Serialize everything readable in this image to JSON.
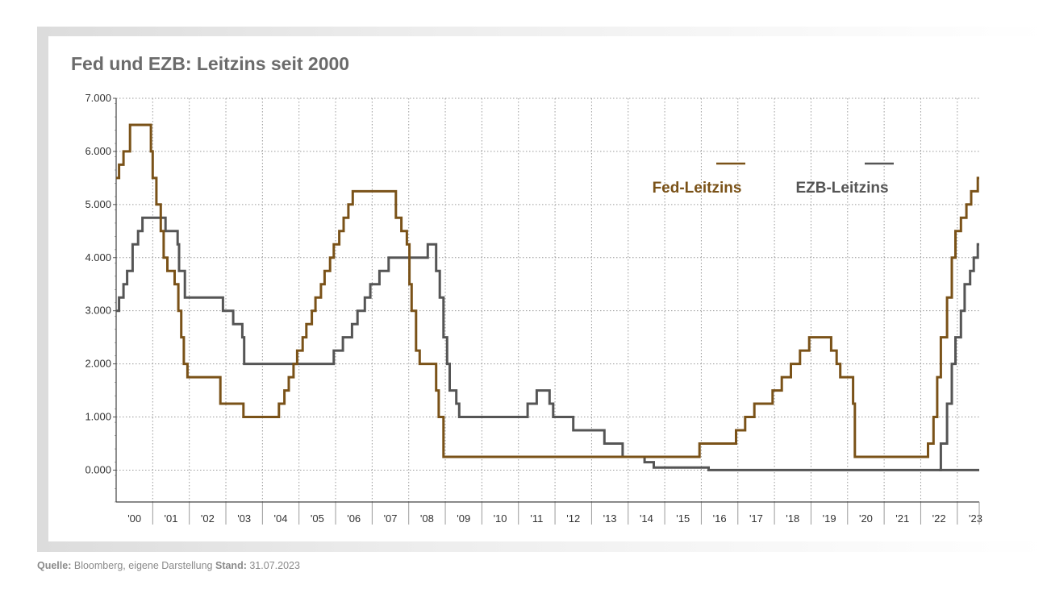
{
  "source": {
    "label": "Quelle:",
    "text": "Bloomberg, eigene Darstellung",
    "stand_label": "Stand:",
    "stand_value": "31.07.2023"
  },
  "chart_data": {
    "type": "line",
    "title": "Fed und EZB: Leitzins seit 2000",
    "xlabel": "",
    "ylabel": "",
    "xlim": [
      2000.0,
      2023.6
    ],
    "ylim": [
      -0.6,
      7.0
    ],
    "y_ticks": [
      0,
      1,
      2,
      3,
      4,
      5,
      6,
      7
    ],
    "y_tick_labels": [
      "0.000",
      "1.000",
      "2.000",
      "3.000",
      "4.000",
      "5.000",
      "6.000",
      "7.000"
    ],
    "x_tick_labels": [
      "'00",
      "'01",
      "'02",
      "'03",
      "'04",
      "'05",
      "'06",
      "'07",
      "'08",
      "'09",
      "'10",
      "'11",
      "'12",
      "'13",
      "'14",
      "'15",
      "'16",
      "'17",
      "'18",
      "'19",
      "'20",
      "'21",
      "'22",
      "'23"
    ],
    "grid": true,
    "legend_position": "top-right",
    "series": [
      {
        "name": "Fed-Leitzins",
        "color": "#7a5218",
        "step": true,
        "points": [
          [
            2000.0,
            5.5
          ],
          [
            2000.08,
            5.75
          ],
          [
            2000.2,
            6.0
          ],
          [
            2000.38,
            6.5
          ],
          [
            2000.95,
            6.0
          ],
          [
            2001.0,
            5.5
          ],
          [
            2001.1,
            5.0
          ],
          [
            2001.22,
            4.5
          ],
          [
            2001.3,
            4.0
          ],
          [
            2001.4,
            3.75
          ],
          [
            2001.6,
            3.5
          ],
          [
            2001.7,
            3.0
          ],
          [
            2001.78,
            2.5
          ],
          [
            2001.85,
            2.0
          ],
          [
            2001.95,
            1.75
          ],
          [
            2002.85,
            1.25
          ],
          [
            2003.48,
            1.0
          ],
          [
            2004.45,
            1.25
          ],
          [
            2004.6,
            1.5
          ],
          [
            2004.72,
            1.75
          ],
          [
            2004.85,
            2.0
          ],
          [
            2004.95,
            2.25
          ],
          [
            2005.1,
            2.5
          ],
          [
            2005.2,
            2.75
          ],
          [
            2005.35,
            3.0
          ],
          [
            2005.45,
            3.25
          ],
          [
            2005.6,
            3.5
          ],
          [
            2005.7,
            3.75
          ],
          [
            2005.85,
            4.0
          ],
          [
            2005.95,
            4.25
          ],
          [
            2006.1,
            4.5
          ],
          [
            2006.22,
            4.75
          ],
          [
            2006.35,
            5.0
          ],
          [
            2006.47,
            5.25
          ],
          [
            2007.65,
            4.75
          ],
          [
            2007.8,
            4.5
          ],
          [
            2007.95,
            4.25
          ],
          [
            2008.02,
            3.5
          ],
          [
            2008.08,
            3.0
          ],
          [
            2008.2,
            2.25
          ],
          [
            2008.3,
            2.0
          ],
          [
            2008.75,
            1.5
          ],
          [
            2008.82,
            1.0
          ],
          [
            2008.95,
            0.25
          ],
          [
            2015.95,
            0.5
          ],
          [
            2016.95,
            0.75
          ],
          [
            2017.2,
            1.0
          ],
          [
            2017.45,
            1.25
          ],
          [
            2017.95,
            1.5
          ],
          [
            2018.2,
            1.75
          ],
          [
            2018.45,
            2.0
          ],
          [
            2018.7,
            2.25
          ],
          [
            2018.95,
            2.5
          ],
          [
            2019.55,
            2.25
          ],
          [
            2019.7,
            2.0
          ],
          [
            2019.8,
            1.75
          ],
          [
            2020.15,
            1.25
          ],
          [
            2020.2,
            0.25
          ],
          [
            2022.2,
            0.5
          ],
          [
            2022.35,
            1.0
          ],
          [
            2022.45,
            1.75
          ],
          [
            2022.55,
            2.5
          ],
          [
            2022.72,
            3.25
          ],
          [
            2022.85,
            4.0
          ],
          [
            2022.95,
            4.5
          ],
          [
            2023.1,
            4.75
          ],
          [
            2023.25,
            5.0
          ],
          [
            2023.38,
            5.25
          ],
          [
            2023.56,
            5.5
          ],
          [
            2023.6,
            5.5
          ]
        ]
      },
      {
        "name": "EZB-Leitzins",
        "color": "#555555",
        "step": true,
        "points": [
          [
            2000.0,
            3.0
          ],
          [
            2000.08,
            3.25
          ],
          [
            2000.2,
            3.5
          ],
          [
            2000.3,
            3.75
          ],
          [
            2000.45,
            4.25
          ],
          [
            2000.6,
            4.5
          ],
          [
            2000.72,
            4.75
          ],
          [
            2001.35,
            4.5
          ],
          [
            2001.68,
            4.25
          ],
          [
            2001.72,
            3.75
          ],
          [
            2001.88,
            3.25
          ],
          [
            2002.92,
            3.0
          ],
          [
            2003.2,
            2.75
          ],
          [
            2003.45,
            2.5
          ],
          [
            2003.5,
            2.0
          ],
          [
            2005.95,
            2.25
          ],
          [
            2006.2,
            2.5
          ],
          [
            2006.45,
            2.75
          ],
          [
            2006.6,
            3.0
          ],
          [
            2006.8,
            3.25
          ],
          [
            2006.95,
            3.5
          ],
          [
            2007.2,
            3.75
          ],
          [
            2007.45,
            4.0
          ],
          [
            2008.52,
            4.25
          ],
          [
            2008.75,
            3.75
          ],
          [
            2008.85,
            3.25
          ],
          [
            2008.95,
            2.5
          ],
          [
            2009.05,
            2.0
          ],
          [
            2009.12,
            1.5
          ],
          [
            2009.3,
            1.25
          ],
          [
            2009.38,
            1.0
          ],
          [
            2011.25,
            1.25
          ],
          [
            2011.5,
            1.5
          ],
          [
            2011.85,
            1.25
          ],
          [
            2011.95,
            1.0
          ],
          [
            2012.5,
            0.75
          ],
          [
            2013.35,
            0.5
          ],
          [
            2013.85,
            0.25
          ],
          [
            2014.45,
            0.15
          ],
          [
            2014.7,
            0.05
          ],
          [
            2016.2,
            0.0
          ],
          [
            2023.6,
            0.0
          ]
        ],
        "points_continued": [
          [
            2022.55,
            0.5
          ],
          [
            2022.72,
            1.25
          ],
          [
            2022.85,
            2.0
          ],
          [
            2022.95,
            2.5
          ],
          [
            2023.1,
            3.0
          ],
          [
            2023.2,
            3.5
          ],
          [
            2023.35,
            3.75
          ],
          [
            2023.45,
            4.0
          ],
          [
            2023.56,
            4.25
          ],
          [
            2023.6,
            4.25
          ]
        ]
      }
    ]
  }
}
